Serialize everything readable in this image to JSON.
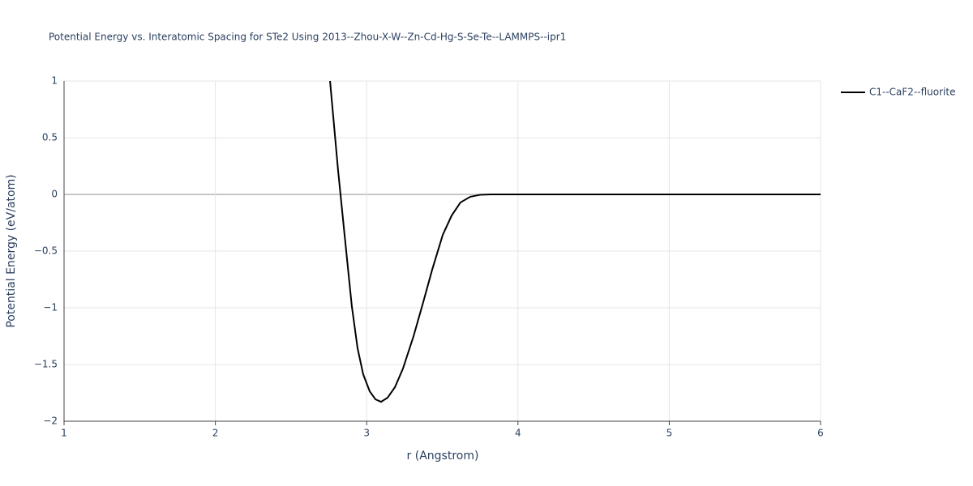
{
  "chart_data": {
    "type": "line",
    "title": "Potential Energy vs. Interatomic Spacing for STe2 Using 2013--Zhou-X-W--Zn-Cd-Hg-S-Se-Te--LAMMPS--ipr1",
    "x_label": "r (Angstrom)",
    "y_label": "Potential Energy (eV/atom)",
    "x": [
      2.758,
      2.811,
      2.854,
      2.902,
      2.94,
      2.977,
      3.02,
      3.058,
      3.095,
      3.138,
      3.187,
      3.24,
      3.31,
      3.374,
      3.433,
      3.503,
      3.562,
      3.62,
      3.685,
      3.749,
      3.819,
      4,
      5,
      6
    ],
    "series": [
      {
        "name": "C1--CaF2--fluorite",
        "color": "#000000",
        "values": [
          1,
          0.214,
          -0.357,
          -0.986,
          -1.357,
          -1.586,
          -1.736,
          -1.807,
          -1.829,
          -1.793,
          -1.7,
          -1.536,
          -1.25,
          -0.95,
          -0.664,
          -0.357,
          -0.186,
          -0.071,
          -0.021,
          -0.004,
          0,
          0,
          0,
          0
        ]
      }
    ],
    "xlim": [
      1,
      6
    ],
    "xticks": [
      1,
      2,
      3,
      4,
      5,
      6
    ],
    "ylim": [
      -2,
      1
    ],
    "yticks": [
      {
        "value": -2,
        "label": "−2"
      },
      {
        "value": -1.5,
        "label": "−1.5"
      },
      {
        "value": -1,
        "label": "−1"
      },
      {
        "value": -0.5,
        "label": "−0.5"
      },
      0,
      0.5,
      1
    ],
    "grid": true,
    "legend": "top-right"
  }
}
